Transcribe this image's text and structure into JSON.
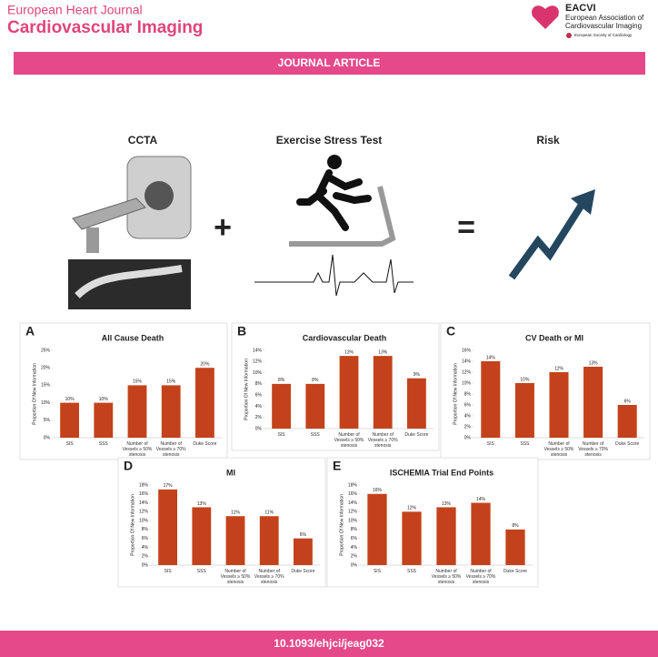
{
  "header": {
    "journal": "European Heart Journal",
    "subtitle": "Cardiovascular Imaging",
    "society_short": "EACVI",
    "society_line1": "European Association of",
    "society_line2": "Cardiovascular Imaging",
    "parent": "European Society of Cardiology"
  },
  "banner": "JOURNAL ARTICLE",
  "headings": {
    "ccta": "CCTA",
    "exercise": "Exercise Stress Test",
    "risk": "Risk"
  },
  "doi": "10.1093/ehjci/jeag032",
  "chart_data": [
    {
      "type": "bar",
      "panel": "A",
      "title": "All Cause Death",
      "y_label": "Proportion Of New Information",
      "color": "#c4421b",
      "categories": [
        "SIS",
        "SSS",
        "Number of Vessels ≥ 50% stenosis",
        "Number of Vessels ≥ 70% stenosis",
        "Duke Score"
      ],
      "values": [
        10,
        10,
        15,
        15,
        20
      ],
      "value_labels": [
        "10%",
        "10%",
        "15%",
        "15%",
        "20%"
      ],
      "ylim": [
        0,
        25
      ],
      "yticks": [
        {
          "value": 0,
          "label": "0%"
        },
        {
          "value": 5,
          "label": "5%"
        },
        {
          "value": 10,
          "label": "10%"
        },
        {
          "value": 15,
          "label": "15%"
        },
        {
          "value": 20,
          "label": "20%"
        },
        {
          "value": 25,
          "label": "25%"
        }
      ]
    },
    {
      "type": "bar",
      "panel": "B",
      "title": "Cardiovascular Death",
      "y_label": "Proportion Of New Information",
      "color": "#c4421b",
      "categories": [
        "SIS",
        "SSS",
        "Number of Vessels ≥ 50% stenosis",
        "Number of Vessels ≥ 70% stenosis",
        "Duke Score"
      ],
      "values": [
        8,
        8,
        13,
        13,
        9
      ],
      "value_labels": [
        "8%",
        "8%",
        "13%",
        "13%",
        "9%"
      ],
      "ylim": [
        0,
        14
      ],
      "yticks": [
        {
          "value": 0,
          "label": "0%"
        },
        {
          "value": 2,
          "label": "2%"
        },
        {
          "value": 4,
          "label": "4%"
        },
        {
          "value": 6,
          "label": "6%"
        },
        {
          "value": 8,
          "label": "8%"
        },
        {
          "value": 10,
          "label": "10%"
        },
        {
          "value": 12,
          "label": "12%"
        },
        {
          "value": 14,
          "label": "14%"
        }
      ]
    },
    {
      "type": "bar",
      "panel": "C",
      "title": "CV Death or MI",
      "y_label": "Proportion Of New Information",
      "color": "#c4421b",
      "categories": [
        "SIS",
        "SSS",
        "Number of Vessels ≥ 50% stenosis",
        "Number of Vessels ≥ 70% stenosis",
        "Duke Score"
      ],
      "values": [
        14,
        10,
        12,
        13,
        6
      ],
      "value_labels": [
        "14%",
        "10%",
        "12%",
        "13%",
        "6%"
      ],
      "ylim": [
        0,
        16
      ],
      "yticks": [
        {
          "value": 0,
          "label": "0%"
        },
        {
          "value": 2,
          "label": "2%"
        },
        {
          "value": 4,
          "label": "4%"
        },
        {
          "value": 6,
          "label": "6%"
        },
        {
          "value": 8,
          "label": "8%"
        },
        {
          "value": 10,
          "label": "10%"
        },
        {
          "value": 12,
          "label": "12%"
        },
        {
          "value": 14,
          "label": "14%"
        },
        {
          "value": 16,
          "label": "16%"
        }
      ]
    },
    {
      "type": "bar",
      "panel": "D",
      "title": "MI",
      "y_label": "Proportion Of New Information",
      "color": "#c4421b",
      "categories": [
        "SIS",
        "SSS",
        "Number of Vessels ≥ 50% stenosis",
        "Number of Vessels ≥ 70% stenosis",
        "Duke Score"
      ],
      "values": [
        17,
        13,
        11,
        11,
        6
      ],
      "value_labels": [
        "17%",
        "13%",
        "11%",
        "11%",
        "6%"
      ],
      "ylim": [
        0,
        18
      ],
      "yticks": [
        {
          "value": 0,
          "label": "0%"
        },
        {
          "value": 2,
          "label": "2%"
        },
        {
          "value": 4,
          "label": "4%"
        },
        {
          "value": 6,
          "label": "6%"
        },
        {
          "value": 8,
          "label": "8%"
        },
        {
          "value": 10,
          "label": "10%"
        },
        {
          "value": 12,
          "label": "12%"
        },
        {
          "value": 14,
          "label": "14%"
        },
        {
          "value": 16,
          "label": "16%"
        },
        {
          "value": 18,
          "label": "18%"
        }
      ]
    },
    {
      "type": "bar",
      "panel": "E",
      "title": "ISCHEMIA Trial End Points",
      "y_label": "Proportion Of New Information",
      "color": "#c4421b",
      "categories": [
        "SIS",
        "SSS",
        "Number of Vessels ≥ 50% stenosis",
        "Number of Vessels ≥ 70% stenosis",
        "Duke Score"
      ],
      "values": [
        16,
        12,
        13,
        14,
        8
      ],
      "value_labels": [
        "16%",
        "12%",
        "13%",
        "14%",
        "8%"
      ],
      "ylim": [
        0,
        18
      ],
      "yticks": [
        {
          "value": 0,
          "label": "0%"
        },
        {
          "value": 2,
          "label": "2%"
        },
        {
          "value": 4,
          "label": "4%"
        },
        {
          "value": 6,
          "label": "6%"
        },
        {
          "value": 8,
          "label": "8%"
        },
        {
          "value": 10,
          "label": "10%"
        },
        {
          "value": 12,
          "label": "12%"
        },
        {
          "value": 14,
          "label": "14%"
        },
        {
          "value": 16,
          "label": "16%"
        },
        {
          "value": 18,
          "label": "18%"
        }
      ]
    }
  ]
}
